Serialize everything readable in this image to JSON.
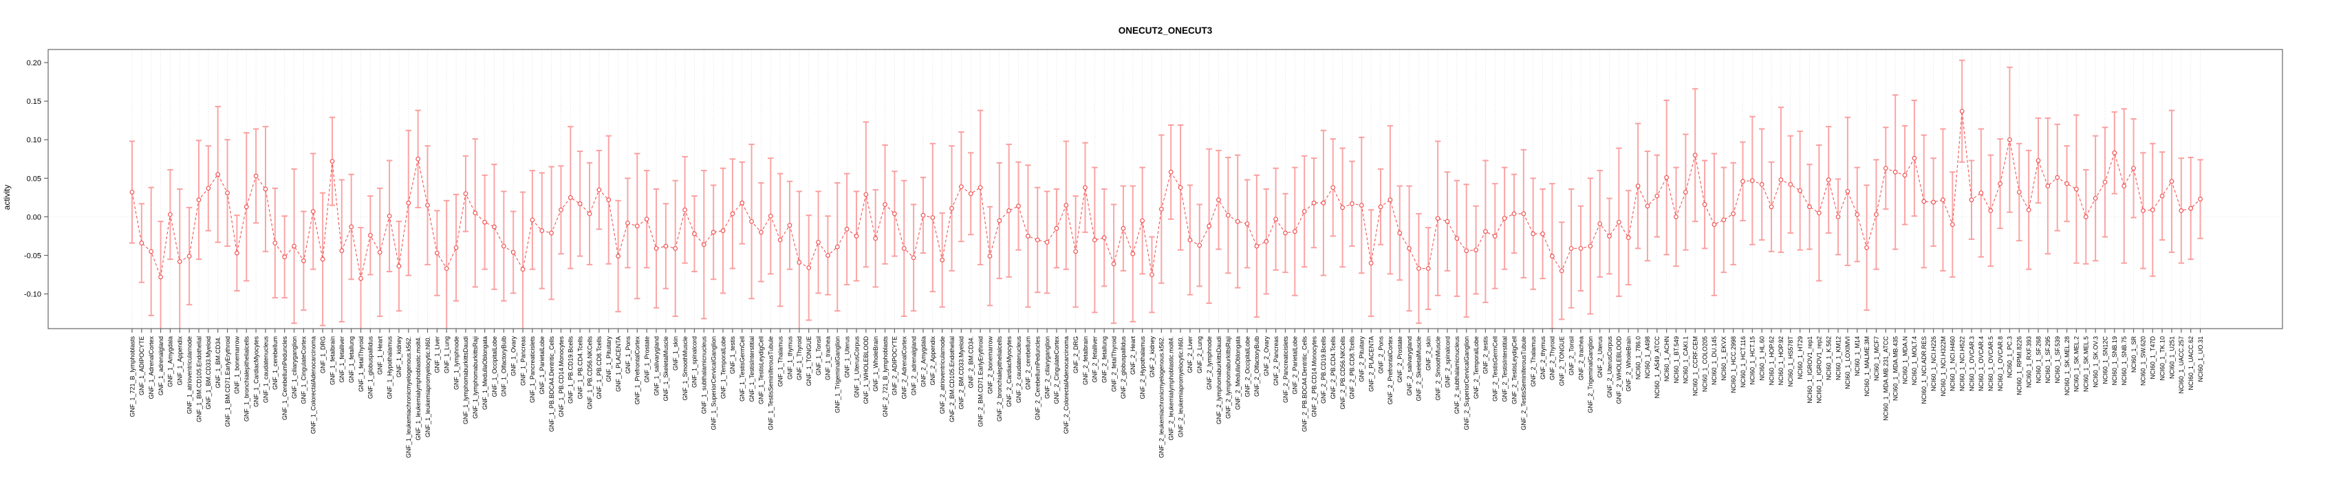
{
  "chart_data": {
    "type": "line",
    "title": "ONECUT2_ONECUT3",
    "ylabel": "activity",
    "xlabel": "",
    "legend": "none",
    "grid": "vertical dotted gridline at every category; dotted horizontal reference line at y=0",
    "point_style": "open-circle",
    "line_style": "dashed",
    "error_bars": true,
    "ylim": [
      -0.145,
      0.217
    ],
    "yticks": [
      0.2,
      0.15,
      0.1,
      0.05,
      0.0,
      -0.05,
      -0.1
    ],
    "ytick_labels": [
      "0.20",
      "0.15",
      "0.10",
      "0.05",
      "0.00",
      "-0.05",
      "-0.10"
    ],
    "reference_line_y": 0,
    "colors": {
      "series": "#f25252",
      "error_bar": "#fb9b9b",
      "grid": "#d8d8d8",
      "box": "#666666",
      "text": "#000000",
      "background": "#ffffff"
    },
    "group_prefixes": [
      "GNF_1_",
      "GNF_2_"
    ],
    "nci60_prefix": "NCI60_1_",
    "gnf_tissues": [
      "721_B_lymphoblasts",
      "ADIPOCYTE",
      "AdrenalCortex",
      "adrenalgland",
      "Amygdala",
      "Appendix",
      "atrioventricularnode",
      "BM.CD105.Endothelial",
      "BM.CD33.Myeloid",
      "BM.CD34.",
      "BM.CD71.EarlyErythroid",
      "bonemarrow",
      "bronchialepithelialcells",
      "CardiacMyocytes",
      "caudatenucleus",
      "cerebellum",
      "CerebellumPeduncles",
      "ciliaryganglion",
      "CingulateCortex",
      "ColorectalAdenocarcinoma",
      "DRG",
      "fetalbrain",
      "fetalliver",
      "fetallung",
      "fetalThyroid",
      "globuspallidus",
      "Heart",
      "Hypothalamus",
      "kidney",
      "leukemiachronicmyelogenous.k562.",
      "leukemialymphoblastic.molt4.",
      "leukemiapromyelocytic.hl60.",
      "Liver",
      "Lung",
      "lymphnode",
      "lymphomaburkittsDaudi",
      "lymphomaburkittsRaji",
      "MedullaOblongata",
      "OccipitalLobe",
      "OlfactoryBulb",
      "Ovary",
      "Pancreas",
      "Pancreaticislets",
      "ParietalLobe",
      "PB.BDCA4.Dentritic_Cells",
      "PB.CD14.Monocytes",
      "PB.CD19.Bcells",
      "PB.CD4.Tcells",
      "PB.CD56.NKCells",
      "PB.CD8.Tcells",
      "Pituitary",
      "PLACENTA",
      "Pons",
      "PrefrontalCortex",
      "Prostate",
      "salivarygland",
      "SkeletalMuscle",
      "skin",
      "SmoothMuscle",
      "spinalcord",
      "subthalamicnucleus",
      "SuperiorCervicalGanglion",
      "TemporalLobe",
      "testis",
      "TestisGermCell",
      "TestisInterstitial",
      "TestisLeydigCell",
      "TestisSeminiferousTubule",
      "Thalamus",
      "thymus",
      "Thyroid",
      "TONGUE",
      "Tonsil",
      "trachea",
      "TrigeminalGanglion",
      "Uterus",
      "UterusCorpus",
      "WHOLEBLOOD",
      "WholeBrain"
    ],
    "nci60_lines": [
      "786.0",
      "A498",
      "A549_ATCC",
      "ACHN",
      "BT.549",
      "CAKI.1",
      "CCRF.CEM",
      "COLO205",
      "DU.145",
      "EKVX",
      "HCC.2998",
      "HCT.116",
      "HCT.15",
      "HL.60",
      "HOP.62",
      "HOP.92",
      "HS578T",
      "HT29",
      "IGROV1_rep1",
      "IGROV1_rep2",
      "K.562",
      "KM12",
      "LOXIMVI",
      "M14",
      "MALME.3M",
      "MCF7",
      "MDA.MB.231_ATCC",
      "MDA.MB.435",
      "MDA.N",
      "MOLT.4",
      "NCI.ADR.RES",
      "NCI.H226",
      "NCI.H322M",
      "NCI.H460",
      "NCI.H522",
      "OVCAR.3",
      "OVCAR.4",
      "OVCAR.5",
      "OVCAR.8",
      "PC.3",
      "RPMI.8226",
      "RXF.393",
      "SF.268",
      "SF.295",
      "SF.539",
      "SK.MEL.28",
      "SK.MEL.2",
      "SK.MEL.5",
      "SK.OV.3",
      "SN12C",
      "SNB.19",
      "SNB.75",
      "SR",
      "SW.620",
      "T47D",
      "TK.10",
      "U251",
      "UACC.257",
      "UACC.62",
      "UO.31"
    ],
    "values_gnf1": [
      0.032,
      -0.034,
      -0.045,
      -0.078,
      0.003,
      -0.058,
      -0.051,
      0.022,
      0.037,
      0.055,
      0.031,
      -0.047,
      0.013,
      0.053,
      0.036,
      -0.034,
      -0.052,
      -0.038,
      -0.057,
      0.007,
      -0.055,
      0.072,
      -0.044,
      -0.013,
      -0.08,
      -0.024,
      -0.046,
      0.001,
      -0.064,
      0.018,
      0.075,
      0.015,
      -0.047,
      -0.067,
      -0.04,
      0.03,
      0.005,
      -0.007,
      -0.013,
      -0.038,
      -0.046,
      -0.068,
      -0.004,
      -0.018,
      -0.021,
      0.009,
      0.025,
      0.017,
      0.004,
      0.035,
      0.022,
      -0.051,
      -0.008,
      -0.012,
      -0.003,
      -0.041,
      -0.038,
      -0.041,
      0.009,
      -0.022,
      -0.036,
      -0.02,
      -0.018,
      0.004,
      0.018,
      -0.006,
      -0.02,
      0.001,
      -0.03,
      -0.011,
      -0.059,
      -0.066,
      -0.033,
      -0.05,
      -0.039,
      -0.016,
      -0.025,
      0.029,
      -0.028
    ],
    "values_gnf2": [
      0.016,
      0.004,
      -0.041,
      -0.053,
      0.002,
      -0.001,
      -0.056,
      0.011,
      0.039,
      0.03,
      0.038,
      -0.051,
      -0.005,
      0.008,
      0.014,
      -0.025,
      -0.03,
      -0.033,
      -0.015,
      0.015,
      -0.045,
      0.038,
      -0.03,
      -0.027,
      -0.061,
      -0.015,
      -0.048,
      -0.005,
      -0.075,
      0.01,
      0.058,
      0.038,
      -0.03,
      -0.037,
      -0.012,
      0.022,
      0.002,
      -0.006,
      -0.009,
      -0.038,
      -0.032,
      -0.003,
      -0.021,
      -0.019,
      0.007,
      0.018,
      0.018,
      0.038,
      0.012,
      0.017,
      0.015,
      -0.06,
      0.013,
      0.022,
      -0.021,
      -0.041,
      -0.067,
      -0.067,
      -0.002,
      -0.006,
      -0.028,
      -0.044,
      -0.043,
      -0.019,
      -0.025,
      -0.002,
      0.004,
      0.004,
      -0.022,
      -0.022,
      -0.051,
      -0.07,
      -0.041,
      -0.041,
      -0.038,
      -0.009,
      -0.025,
      -0.007,
      -0.027
    ],
    "values_nci60": [
      0.04,
      0.014,
      0.027,
      0.051,
      0.0,
      0.032,
      0.08,
      0.016,
      -0.01,
      -0.004,
      0.004,
      0.046,
      0.047,
      0.042,
      0.013,
      0.048,
      0.042,
      0.034,
      0.013,
      0.005,
      0.048,
      0.0,
      0.033,
      0.003,
      -0.04,
      0.003,
      0.063,
      0.058,
      0.054,
      0.076,
      0.02,
      0.019,
      0.022,
      -0.01,
      0.137,
      0.022,
      0.031,
      0.008,
      0.043,
      0.1,
      0.032,
      0.009,
      0.073,
      0.04,
      0.051,
      0.043,
      0.036,
      0.0,
      0.024,
      0.045,
      0.083,
      0.04,
      0.063,
      0.008,
      0.009,
      0.027,
      0.046,
      0.008,
      0.011,
      0.023
    ],
    "error_halfwidth_cycle_approx": [
      0.066,
      0.051,
      0.083,
      0.072,
      0.058,
      0.094,
      0.063,
      0.077,
      0.055,
      0.088,
      0.069,
      0.049,
      0.096,
      0.061,
      0.081,
      0.071,
      0.053,
      0.1,
      0.064,
      0.075,
      0.086,
      0.057,
      0.092,
      0.068
    ]
  },
  "layout_note": ""
}
